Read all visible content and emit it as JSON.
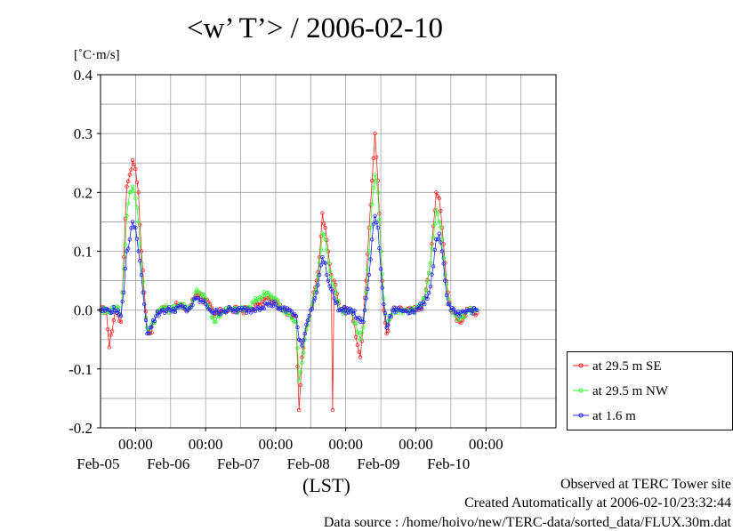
{
  "title": "<w’ T’> / 2006-02-10",
  "ylabel": "[˚C·m/s]",
  "xlabel": "(LST)",
  "footer": {
    "line1": "Observed at TERC Tower site",
    "line2": "Created Automatically at 2006-02-10/23:32:44",
    "line3": "Data source : /home/hoivo/new/TERC-data/sorted_data/FLUX.30m.dat"
  },
  "colors": {
    "red": "#ff2020",
    "green": "#30ff30",
    "blue": "#2020ff",
    "grid": "#a0a0a0"
  },
  "chart_data": {
    "type": "line",
    "title": "<w’ T’> / 2006-02-10",
    "ylabel": "[˚C·m/s]",
    "xlabel": "(LST)",
    "xlim": [
      "2006-02-04T12:00",
      "2006-02-10T24:00"
    ],
    "ylim": [
      -0.2,
      0.4
    ],
    "yticks": [
      "-0.2",
      "-0.1",
      "0.0",
      "0.1",
      "0.2",
      "0.3",
      "0.4"
    ],
    "xticks": [
      {
        "time": "00:00",
        "date": "Feb-05"
      },
      {
        "time": "00:00",
        "date": "Feb-06"
      },
      {
        "time": "00:00",
        "date": "Feb-07"
      },
      {
        "time": "00:00",
        "date": "Feb-08"
      },
      {
        "time": "00:00",
        "date": "Feb-09"
      },
      {
        "time": "00:00",
        "date": "Feb-10"
      }
    ],
    "grid": true,
    "legend_position": "right",
    "series": [
      {
        "name": "at 29.5 m SE",
        "color": "#ff2020",
        "points": [
          [
            "2006-02-04T12:00",
            0.0
          ],
          [
            "2006-02-04T14:00",
            0.0
          ],
          [
            "2006-02-04T15:00",
            -0.063
          ],
          [
            "2006-02-04T17:00",
            0.0
          ],
          [
            "2006-02-04T19:00",
            -0.02
          ],
          [
            "2006-02-04T20:00",
            0.09
          ],
          [
            "2006-02-04T21:00",
            0.21
          ],
          [
            "2006-02-04T22:00",
            0.23
          ],
          [
            "2006-02-04T23:00",
            0.255
          ],
          [
            "2006-02-05T00:00",
            0.24
          ],
          [
            "2006-02-05T01:00",
            0.2
          ],
          [
            "2006-02-05T02:00",
            0.1
          ],
          [
            "2006-02-05T03:00",
            0.03
          ],
          [
            "2006-02-05T04:00",
            -0.03
          ],
          [
            "2006-02-05T05:00",
            -0.04
          ],
          [
            "2006-02-05T07:00",
            -0.01
          ],
          [
            "2006-02-05T09:00",
            0.005
          ],
          [
            "2006-02-05T12:00",
            0.0
          ],
          [
            "2006-02-05T15:00",
            0.01
          ],
          [
            "2006-02-05T18:00",
            0.0
          ],
          [
            "2006-02-05T21:00",
            0.03
          ],
          [
            "2006-02-06T00:00",
            0.02
          ],
          [
            "2006-02-06T03:00",
            -0.01
          ],
          [
            "2006-02-06T06:00",
            0.0
          ],
          [
            "2006-02-06T09:00",
            0.0
          ],
          [
            "2006-02-06T12:00",
            0.0
          ],
          [
            "2006-02-06T15:00",
            0.0
          ],
          [
            "2006-02-06T18:00",
            0.01
          ],
          [
            "2006-02-06T21:00",
            0.02
          ],
          [
            "2006-02-07T00:00",
            0.015
          ],
          [
            "2006-02-07T02:00",
            0.0
          ],
          [
            "2006-02-07T05:00",
            -0.005
          ],
          [
            "2006-02-07T07:00",
            -0.01
          ],
          [
            "2006-02-07T08:00",
            -0.17
          ],
          [
            "2006-02-07T09:00",
            -0.08
          ],
          [
            "2006-02-07T10:00",
            -0.04
          ],
          [
            "2006-02-07T12:00",
            0.0
          ],
          [
            "2006-02-07T14:00",
            0.05
          ],
          [
            "2006-02-07T15:00",
            0.09
          ],
          [
            "2006-02-07T16:00",
            0.165
          ],
          [
            "2006-02-07T17:00",
            0.14
          ],
          [
            "2006-02-07T18:00",
            0.1
          ],
          [
            "2006-02-07T19:00",
            0.06
          ],
          [
            "2006-02-07T19:30",
            -0.17
          ],
          [
            "2006-02-07T20:00",
            0.05
          ],
          [
            "2006-02-07T22:00",
            0.0
          ],
          [
            "2006-02-08T02:00",
            0.0
          ],
          [
            "2006-02-08T05:00",
            -0.08
          ],
          [
            "2006-02-08T06:00",
            -0.02
          ],
          [
            "2006-02-08T07:00",
            0.05
          ],
          [
            "2006-02-08T08:00",
            0.14
          ],
          [
            "2006-02-08T09:00",
            0.22
          ],
          [
            "2006-02-08T10:00",
            0.3
          ],
          [
            "2006-02-08T11:00",
            0.22
          ],
          [
            "2006-02-08T12:00",
            0.1
          ],
          [
            "2006-02-08T13:00",
            0.0
          ],
          [
            "2006-02-08T14:00",
            -0.04
          ],
          [
            "2006-02-08T16:00",
            0.0
          ],
          [
            "2006-02-08T20:00",
            0.0
          ],
          [
            "2006-02-08T23:00",
            0.0
          ],
          [
            "2006-02-09T01:00",
            0.0
          ],
          [
            "2006-02-09T03:00",
            0.02
          ],
          [
            "2006-02-09T05:00",
            0.08
          ],
          [
            "2006-02-09T07:00",
            0.2
          ],
          [
            "2006-02-09T08:00",
            0.19
          ],
          [
            "2006-02-09T09:00",
            0.14
          ],
          [
            "2006-02-09T10:00",
            0.08
          ],
          [
            "2006-02-09T11:00",
            0.03
          ],
          [
            "2006-02-09T12:00",
            0.0
          ],
          [
            "2006-02-09T15:00",
            -0.02
          ],
          [
            "2006-02-09T18:00",
            0.0
          ],
          [
            "2006-02-09T21:00",
            -0.005
          ]
        ]
      },
      {
        "name": "at 29.5 m NW",
        "color": "#30ff30",
        "points": [
          [
            "2006-02-04T12:00",
            0.0
          ],
          [
            "2006-02-04T15:00",
            0.0
          ],
          [
            "2006-02-04T18:00",
            0.005
          ],
          [
            "2006-02-04T19:00",
            -0.01
          ],
          [
            "2006-02-04T20:00",
            0.07
          ],
          [
            "2006-02-04T21:00",
            0.16
          ],
          [
            "2006-02-04T22:00",
            0.2
          ],
          [
            "2006-02-04T23:00",
            0.21
          ],
          [
            "2006-02-05T00:00",
            0.19
          ],
          [
            "2006-02-05T01:00",
            0.15
          ],
          [
            "2006-02-05T02:00",
            0.08
          ],
          [
            "2006-02-05T03:00",
            0.01
          ],
          [
            "2006-02-05T04:00",
            -0.03
          ],
          [
            "2006-02-05T05:00",
            -0.03
          ],
          [
            "2006-02-05T07:00",
            -0.01
          ],
          [
            "2006-02-05T09:00",
            0.005
          ],
          [
            "2006-02-05T12:00",
            0.0
          ],
          [
            "2006-02-05T15:00",
            0.01
          ],
          [
            "2006-02-05T18:00",
            0.0
          ],
          [
            "2006-02-05T21:00",
            0.035
          ],
          [
            "2006-02-06T00:00",
            0.02
          ],
          [
            "2006-02-06T03:00",
            -0.02
          ],
          [
            "2006-02-06T06:00",
            0.0
          ],
          [
            "2006-02-06T09:00",
            0.0
          ],
          [
            "2006-02-06T12:00",
            0.0
          ],
          [
            "2006-02-06T15:00",
            0.005
          ],
          [
            "2006-02-06T18:00",
            0.02
          ],
          [
            "2006-02-06T21:00",
            0.03
          ],
          [
            "2006-02-07T00:00",
            0.02
          ],
          [
            "2006-02-07T02:00",
            0.0
          ],
          [
            "2006-02-07T05:00",
            -0.01
          ],
          [
            "2006-02-07T07:00",
            -0.02
          ],
          [
            "2006-02-07T08:00",
            -0.12
          ],
          [
            "2006-02-07T09:00",
            -0.09
          ],
          [
            "2006-02-07T10:00",
            -0.05
          ],
          [
            "2006-02-07T12:00",
            0.0
          ],
          [
            "2006-02-07T14:00",
            0.04
          ],
          [
            "2006-02-07T15:00",
            0.08
          ],
          [
            "2006-02-07T16:00",
            0.13
          ],
          [
            "2006-02-07T17:00",
            0.12
          ],
          [
            "2006-02-07T18:00",
            0.08
          ],
          [
            "2006-02-07T20:00",
            0.04
          ],
          [
            "2006-02-07T22:00",
            0.0
          ],
          [
            "2006-02-08T02:00",
            0.0
          ],
          [
            "2006-02-08T05:00",
            -0.05
          ],
          [
            "2006-02-08T06:00",
            -0.03
          ],
          [
            "2006-02-08T07:00",
            0.03
          ],
          [
            "2006-02-08T08:00",
            0.1
          ],
          [
            "2006-02-08T09:00",
            0.18
          ],
          [
            "2006-02-08T10:00",
            0.23
          ],
          [
            "2006-02-08T11:00",
            0.2
          ],
          [
            "2006-02-08T12:00",
            0.1
          ],
          [
            "2006-02-08T13:00",
            0.02
          ],
          [
            "2006-02-08T14:00",
            -0.03
          ],
          [
            "2006-02-08T16:00",
            0.0
          ],
          [
            "2006-02-08T20:00",
            0.0
          ],
          [
            "2006-02-09T00:00",
            0.0
          ],
          [
            "2006-02-09T03:00",
            0.02
          ],
          [
            "2006-02-09T05:00",
            0.08
          ],
          [
            "2006-02-09T07:00",
            0.17
          ],
          [
            "2006-02-09T08:00",
            0.15
          ],
          [
            "2006-02-09T09:00",
            0.12
          ],
          [
            "2006-02-09T10:00",
            0.06
          ],
          [
            "2006-02-09T11:00",
            0.02
          ],
          [
            "2006-02-09T12:00",
            0.0
          ],
          [
            "2006-02-09T15:00",
            -0.015
          ],
          [
            "2006-02-09T18:00",
            0.0
          ],
          [
            "2006-02-09T21:00",
            0.0
          ]
        ]
      },
      {
        "name": "at 1.6 m",
        "color": "#2020ff",
        "points": [
          [
            "2006-02-04T12:00",
            0.0
          ],
          [
            "2006-02-04T15:00",
            0.0
          ],
          [
            "2006-02-04T18:00",
            0.0
          ],
          [
            "2006-02-04T19:00",
            -0.01
          ],
          [
            "2006-02-04T20:00",
            0.03
          ],
          [
            "2006-02-04T21:00",
            0.1
          ],
          [
            "2006-02-04T22:00",
            0.12
          ],
          [
            "2006-02-04T23:00",
            0.15
          ],
          [
            "2006-02-05T00:00",
            0.14
          ],
          [
            "2006-02-05T01:00",
            0.1
          ],
          [
            "2006-02-05T02:00",
            0.06
          ],
          [
            "2006-02-05T03:00",
            0.01
          ],
          [
            "2006-02-05T04:00",
            -0.04
          ],
          [
            "2006-02-05T05:00",
            -0.03
          ],
          [
            "2006-02-05T07:00",
            -0.01
          ],
          [
            "2006-02-05T09:00",
            0.0
          ],
          [
            "2006-02-05T12:00",
            0.0
          ],
          [
            "2006-02-05T15:00",
            0.005
          ],
          [
            "2006-02-05T18:00",
            0.0
          ],
          [
            "2006-02-05T21:00",
            0.02
          ],
          [
            "2006-02-06T00:00",
            0.01
          ],
          [
            "2006-02-06T03:00",
            -0.005
          ],
          [
            "2006-02-06T06:00",
            0.0
          ],
          [
            "2006-02-06T09:00",
            0.0
          ],
          [
            "2006-02-06T12:00",
            0.0
          ],
          [
            "2006-02-06T15:00",
            0.0
          ],
          [
            "2006-02-06T18:00",
            0.005
          ],
          [
            "2006-02-06T21:00",
            0.01
          ],
          [
            "2006-02-07T00:00",
            0.01
          ],
          [
            "2006-02-07T02:00",
            0.0
          ],
          [
            "2006-02-07T05:00",
            0.0
          ],
          [
            "2006-02-07T07:00",
            -0.01
          ],
          [
            "2006-02-07T08:00",
            -0.05
          ],
          [
            "2006-02-07T09:00",
            -0.06
          ],
          [
            "2006-02-07T10:00",
            -0.04
          ],
          [
            "2006-02-07T12:00",
            0.0
          ],
          [
            "2006-02-07T14:00",
            0.03
          ],
          [
            "2006-02-07T15:00",
            0.06
          ],
          [
            "2006-02-07T16:00",
            0.09
          ],
          [
            "2006-02-07T17:00",
            0.08
          ],
          [
            "2006-02-07T18:00",
            0.05
          ],
          [
            "2006-02-07T20:00",
            0.02
          ],
          [
            "2006-02-07T22:00",
            0.0
          ],
          [
            "2006-02-08T02:00",
            0.0
          ],
          [
            "2006-02-08T05:00",
            -0.02
          ],
          [
            "2006-02-08T06:00",
            -0.02
          ],
          [
            "2006-02-08T07:00",
            0.02
          ],
          [
            "2006-02-08T08:00",
            0.06
          ],
          [
            "2006-02-08T09:00",
            0.12
          ],
          [
            "2006-02-08T10:00",
            0.16
          ],
          [
            "2006-02-08T11:00",
            0.14
          ],
          [
            "2006-02-08T12:00",
            0.07
          ],
          [
            "2006-02-08T13:00",
            0.01
          ],
          [
            "2006-02-08T14:00",
            -0.03
          ],
          [
            "2006-02-08T16:00",
            0.0
          ],
          [
            "2006-02-08T20:00",
            0.0
          ],
          [
            "2006-02-09T00:00",
            0.0
          ],
          [
            "2006-02-09T03:00",
            0.01
          ],
          [
            "2006-02-09T05:00",
            0.04
          ],
          [
            "2006-02-09T07:00",
            0.12
          ],
          [
            "2006-02-09T08:00",
            0.13
          ],
          [
            "2006-02-09T09:00",
            0.1
          ],
          [
            "2006-02-09T10:00",
            0.05
          ],
          [
            "2006-02-09T11:00",
            0.01
          ],
          [
            "2006-02-09T12:00",
            0.0
          ],
          [
            "2006-02-09T15:00",
            -0.01
          ],
          [
            "2006-02-09T18:00",
            0.0
          ],
          [
            "2006-02-09T21:00",
            0.0
          ]
        ]
      }
    ]
  }
}
